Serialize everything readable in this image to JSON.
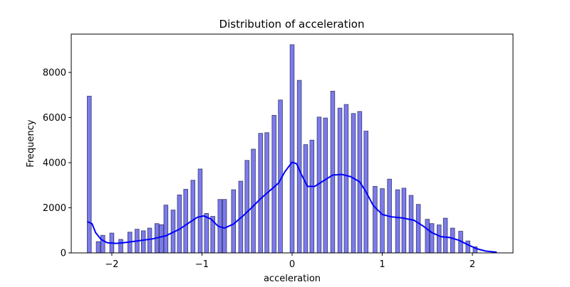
{
  "chart_data": {
    "type": "bar",
    "title": "Distribution of acceleration",
    "xlabel": "acceleration",
    "ylabel": "Frequency",
    "xlim": [
      -2.45,
      2.45
    ],
    "ylim": [
      0,
      9700
    ],
    "x_ticks": [
      -2,
      -1,
      0,
      1,
      2
    ],
    "x_tick_labels": [
      "−2",
      "−1",
      "0",
      "1",
      "2"
    ],
    "y_ticks": [
      0,
      2000,
      4000,
      6000,
      8000
    ],
    "y_tick_labels": [
      "0",
      "2000",
      "4000",
      "6000",
      "8000"
    ],
    "bin_width": 0.045,
    "bars": [
      {
        "x": -2.25,
        "value": 6950
      },
      {
        "x": -2.15,
        "value": 500
      },
      {
        "x": -2.1,
        "value": 780
      },
      {
        "x": -2.0,
        "value": 880
      },
      {
        "x": -1.9,
        "value": 600
      },
      {
        "x": -1.8,
        "value": 920
      },
      {
        "x": -1.72,
        "value": 1050
      },
      {
        "x": -1.65,
        "value": 980
      },
      {
        "x": -1.58,
        "value": 1100
      },
      {
        "x": -1.5,
        "value": 1300
      },
      {
        "x": -1.45,
        "value": 1250
      },
      {
        "x": -1.4,
        "value": 2120
      },
      {
        "x": -1.32,
        "value": 1900
      },
      {
        "x": -1.25,
        "value": 2570
      },
      {
        "x": -1.18,
        "value": 2820
      },
      {
        "x": -1.1,
        "value": 3220
      },
      {
        "x": -1.02,
        "value": 3720
      },
      {
        "x": -0.95,
        "value": 1750
      },
      {
        "x": -0.88,
        "value": 1620
      },
      {
        "x": -0.8,
        "value": 2370
      },
      {
        "x": -0.75,
        "value": 2370
      },
      {
        "x": -0.65,
        "value": 2800
      },
      {
        "x": -0.57,
        "value": 3180
      },
      {
        "x": -0.5,
        "value": 4100
      },
      {
        "x": -0.43,
        "value": 4600
      },
      {
        "x": -0.35,
        "value": 5300
      },
      {
        "x": -0.28,
        "value": 5330
      },
      {
        "x": -0.2,
        "value": 6100
      },
      {
        "x": -0.13,
        "value": 6780
      },
      {
        "x": 0.0,
        "value": 9230
      },
      {
        "x": 0.08,
        "value": 7650
      },
      {
        "x": 0.15,
        "value": 4800
      },
      {
        "x": 0.22,
        "value": 5000
      },
      {
        "x": 0.3,
        "value": 6020
      },
      {
        "x": 0.37,
        "value": 5980
      },
      {
        "x": 0.45,
        "value": 7170
      },
      {
        "x": 0.53,
        "value": 6420
      },
      {
        "x": 0.6,
        "value": 6580
      },
      {
        "x": 0.68,
        "value": 6180
      },
      {
        "x": 0.75,
        "value": 6270
      },
      {
        "x": 0.82,
        "value": 5400
      },
      {
        "x": 0.92,
        "value": 2950
      },
      {
        "x": 1.0,
        "value": 2850
      },
      {
        "x": 1.08,
        "value": 3270
      },
      {
        "x": 1.17,
        "value": 2800
      },
      {
        "x": 1.24,
        "value": 2870
      },
      {
        "x": 1.32,
        "value": 2550
      },
      {
        "x": 1.4,
        "value": 2150
      },
      {
        "x": 1.5,
        "value": 1490
      },
      {
        "x": 1.55,
        "value": 1300
      },
      {
        "x": 1.63,
        "value": 1240
      },
      {
        "x": 1.7,
        "value": 1540
      },
      {
        "x": 1.78,
        "value": 1100
      },
      {
        "x": 1.87,
        "value": 960
      },
      {
        "x": 1.95,
        "value": 530
      },
      {
        "x": 2.03,
        "value": 270
      }
    ],
    "kde": {
      "color": "#0000ff",
      "points": [
        [
          -2.27,
          1380
        ],
        [
          -2.22,
          1300
        ],
        [
          -2.18,
          900
        ],
        [
          -2.12,
          600
        ],
        [
          -2.05,
          450
        ],
        [
          -1.95,
          420
        ],
        [
          -1.85,
          460
        ],
        [
          -1.7,
          540
        ],
        [
          -1.55,
          620
        ],
        [
          -1.4,
          760
        ],
        [
          -1.25,
          1050
        ],
        [
          -1.15,
          1320
        ],
        [
          -1.05,
          1580
        ],
        [
          -0.98,
          1640
        ],
        [
          -0.9,
          1500
        ],
        [
          -0.82,
          1180
        ],
        [
          -0.75,
          1100
        ],
        [
          -0.65,
          1280
        ],
        [
          -0.55,
          1620
        ],
        [
          -0.45,
          2000
        ],
        [
          -0.35,
          2400
        ],
        [
          -0.25,
          2750
        ],
        [
          -0.15,
          3100
        ],
        [
          -0.08,
          3600
        ],
        [
          0.0,
          4020
        ],
        [
          0.05,
          3950
        ],
        [
          0.1,
          3500
        ],
        [
          0.17,
          2950
        ],
        [
          0.25,
          2950
        ],
        [
          0.35,
          3200
        ],
        [
          0.45,
          3450
        ],
        [
          0.55,
          3480
        ],
        [
          0.65,
          3380
        ],
        [
          0.75,
          3150
        ],
        [
          0.82,
          2700
        ],
        [
          0.9,
          2100
        ],
        [
          1.0,
          1700
        ],
        [
          1.1,
          1600
        ],
        [
          1.22,
          1550
        ],
        [
          1.35,
          1450
        ],
        [
          1.45,
          1200
        ],
        [
          1.55,
          900
        ],
        [
          1.65,
          720
        ],
        [
          1.75,
          680
        ],
        [
          1.85,
          560
        ],
        [
          1.95,
          360
        ],
        [
          2.05,
          180
        ],
        [
          2.15,
          80
        ],
        [
          2.27,
          30
        ]
      ]
    },
    "bar_color": "#7b7bea",
    "grid": false
  }
}
